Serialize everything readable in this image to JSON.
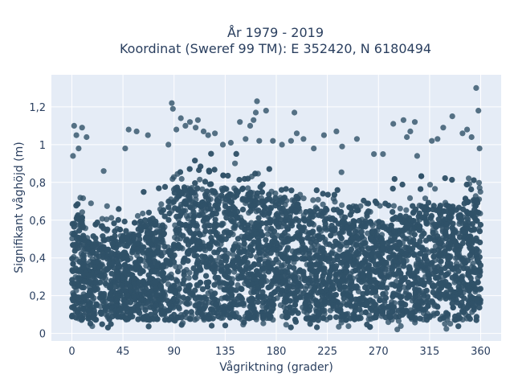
{
  "chart_data": {
    "type": "scatter",
    "title_lines": [
      "År 1979 - 2019",
      "Koordinat (Sweref 99 TM): E 352420, N 6180494"
    ],
    "xlabel": "Vågriktning (grader)",
    "ylabel": "Signifikant våghöjd (m)",
    "xlim": [
      -18,
      378
    ],
    "ylim": [
      -0.04,
      1.37
    ],
    "x_ticks": [
      0,
      45,
      90,
      135,
      180,
      225,
      270,
      315,
      360
    ],
    "x_tick_labels": [
      "0",
      "45",
      "90",
      "135",
      "180",
      "225",
      "270",
      "315",
      "360"
    ],
    "y_ticks": [
      0,
      0.2,
      0.4,
      0.6,
      0.8,
      1.0,
      1.2
    ],
    "y_tick_labels": [
      "0",
      "0,2",
      "0,4",
      "0,6",
      "0,8",
      "1",
      "1,2"
    ],
    "grid": true,
    "marker_color": "#2f5168",
    "background_color": "#e5ecf6",
    "outlier_points": [
      {
        "x": 2,
        "y": 1.1
      },
      {
        "x": 4,
        "y": 1.05
      },
      {
        "x": 9,
        "y": 1.09
      },
      {
        "x": 13,
        "y": 1.04
      },
      {
        "x": 6,
        "y": 0.98
      },
      {
        "x": 1,
        "y": 0.94
      },
      {
        "x": 28,
        "y": 0.86
      },
      {
        "x": 50,
        "y": 1.08
      },
      {
        "x": 57,
        "y": 1.07
      },
      {
        "x": 47,
        "y": 0.98
      },
      {
        "x": 67,
        "y": 1.05
      },
      {
        "x": 85,
        "y": 1.0
      },
      {
        "x": 88,
        "y": 1.22
      },
      {
        "x": 89,
        "y": 1.19
      },
      {
        "x": 92,
        "y": 1.08
      },
      {
        "x": 96,
        "y": 1.14
      },
      {
        "x": 100,
        "y": 1.1
      },
      {
        "x": 104,
        "y": 1.12
      },
      {
        "x": 109,
        "y": 1.09
      },
      {
        "x": 111,
        "y": 1.13
      },
      {
        "x": 116,
        "y": 1.07
      },
      {
        "x": 120,
        "y": 1.05
      },
      {
        "x": 126,
        "y": 1.06
      },
      {
        "x": 133,
        "y": 1.0
      },
      {
        "x": 140,
        "y": 1.01
      },
      {
        "x": 148,
        "y": 1.12
      },
      {
        "x": 153,
        "y": 1.03
      },
      {
        "x": 157,
        "y": 1.1
      },
      {
        "x": 163,
        "y": 1.23
      },
      {
        "x": 162,
        "y": 1.17
      },
      {
        "x": 160,
        "y": 1.13
      },
      {
        "x": 165,
        "y": 1.02
      },
      {
        "x": 171,
        "y": 1.18
      },
      {
        "x": 177,
        "y": 1.02
      },
      {
        "x": 185,
        "y": 1.0
      },
      {
        "x": 193,
        "y": 1.02
      },
      {
        "x": 196,
        "y": 1.17
      },
      {
        "x": 198,
        "y": 1.06
      },
      {
        "x": 204,
        "y": 1.03
      },
      {
        "x": 213,
        "y": 0.98
      },
      {
        "x": 222,
        "y": 1.05
      },
      {
        "x": 233,
        "y": 1.07
      },
      {
        "x": 238,
        "y": 0.99
      },
      {
        "x": 251,
        "y": 1.03
      },
      {
        "x": 266,
        "y": 0.95
      },
      {
        "x": 274,
        "y": 0.95
      },
      {
        "x": 283,
        "y": 1.11
      },
      {
        "x": 292,
        "y": 1.13
      },
      {
        "x": 295,
        "y": 1.04
      },
      {
        "x": 298,
        "y": 1.07
      },
      {
        "x": 302,
        "y": 1.12
      },
      {
        "x": 304,
        "y": 0.94
      },
      {
        "x": 317,
        "y": 1.02
      },
      {
        "x": 322,
        "y": 1.03
      },
      {
        "x": 327,
        "y": 1.09
      },
      {
        "x": 335,
        "y": 1.15
      },
      {
        "x": 344,
        "y": 1.06
      },
      {
        "x": 348,
        "y": 1.08
      },
      {
        "x": 352,
        "y": 1.04
      },
      {
        "x": 356,
        "y": 1.3
      },
      {
        "x": 358,
        "y": 1.18
      },
      {
        "x": 359,
        "y": 0.98
      }
    ]
  }
}
